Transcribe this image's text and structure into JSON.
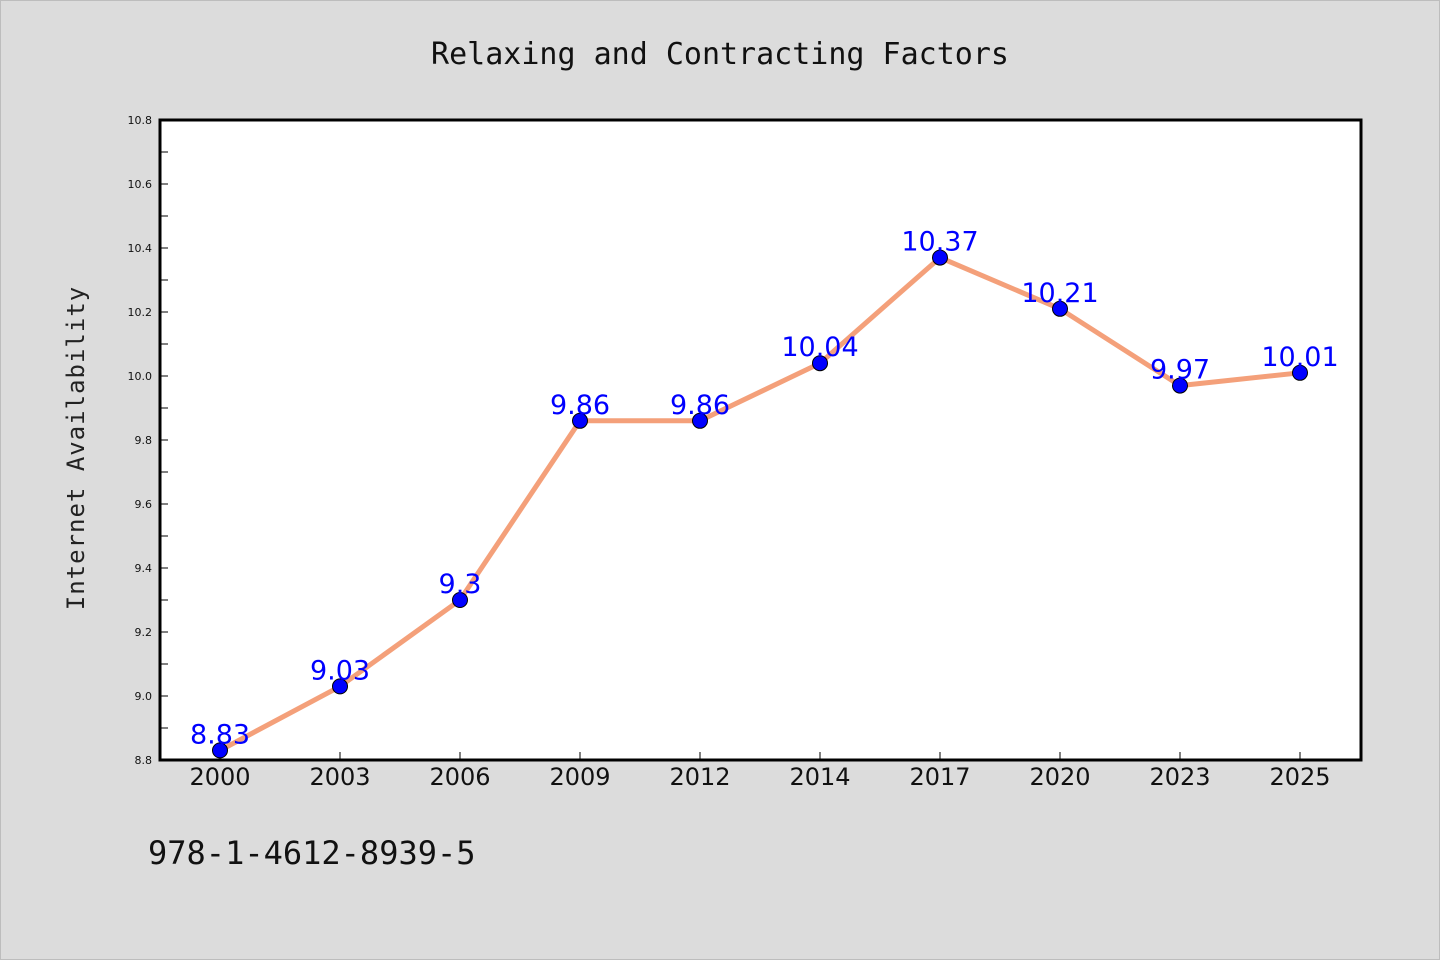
{
  "chart_data": {
    "type": "line",
    "title": "Relaxing and Contracting Factors",
    "xlabel": "",
    "ylabel": "Internet Availability",
    "categories": [
      "2000",
      "2003",
      "2006",
      "2009",
      "2012",
      "2014",
      "2017",
      "2020",
      "2023",
      "2025"
    ],
    "series": [
      {
        "values": [
          8.83,
          9.03,
          9.3,
          9.86,
          9.86,
          10.04,
          10.37,
          10.21,
          9.97,
          10.01
        ],
        "data_labels": [
          "8.83",
          "9.03",
          "9.3",
          "9.86",
          "9.86",
          "10.04",
          "10.37",
          "10.21",
          "9.97",
          "10.01"
        ],
        "line_color": "#f4a07a",
        "marker_color": "#0000ff"
      }
    ],
    "ylim": [
      8.8,
      10.8
    ],
    "yticks": [
      "8.8",
      "9.0",
      "9.2",
      "9.4",
      "9.6",
      "9.8",
      "10.0",
      "10.2",
      "10.4",
      "10.6",
      "10.8"
    ],
    "grid": false,
    "legend": "none"
  },
  "footer": {
    "isbn": "978-1-4612-8939-5"
  },
  "colors": {
    "background": "#dcdcdc",
    "plot_background": "#ffffff",
    "axis": "#000000"
  }
}
